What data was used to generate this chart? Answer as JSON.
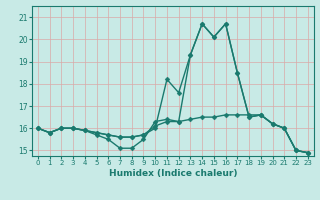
{
  "title": "",
  "xlabel": "Humidex (Indice chaleur)",
  "bg_color": "#c8eae6",
  "line_color": "#1a7a6e",
  "grid_color": "#daa8a8",
  "xlim": [
    -0.5,
    23.5
  ],
  "ylim": [
    14.75,
    21.5
  ],
  "yticks": [
    15,
    16,
    17,
    18,
    19,
    20,
    21
  ],
  "xticks": [
    0,
    1,
    2,
    3,
    4,
    5,
    6,
    7,
    8,
    9,
    10,
    11,
    12,
    13,
    14,
    15,
    16,
    17,
    18,
    19,
    20,
    21,
    22,
    23
  ],
  "line1": [
    16.0,
    15.8,
    16.0,
    16.0,
    15.9,
    15.7,
    15.5,
    15.1,
    15.1,
    15.5,
    16.3,
    16.4,
    16.3,
    19.3,
    20.7,
    20.1,
    20.7,
    18.5,
    16.5,
    16.6,
    16.2,
    16.0,
    15.0,
    14.9
  ],
  "line2": [
    16.0,
    15.8,
    16.0,
    16.0,
    15.9,
    15.8,
    15.7,
    15.6,
    15.6,
    15.7,
    16.0,
    18.2,
    17.6,
    19.3,
    20.7,
    20.1,
    20.7,
    18.5,
    16.5,
    16.6,
    16.2,
    16.0,
    15.0,
    14.9
  ],
  "line3": [
    16.0,
    15.8,
    16.0,
    16.0,
    15.9,
    15.8,
    15.7,
    15.6,
    15.6,
    15.7,
    16.1,
    16.3,
    16.3,
    16.4,
    16.5,
    16.5,
    16.6,
    16.6,
    16.6,
    16.6,
    16.2,
    16.0,
    15.0,
    14.9
  ],
  "marker_size": 2.5,
  "line_width": 1.0
}
